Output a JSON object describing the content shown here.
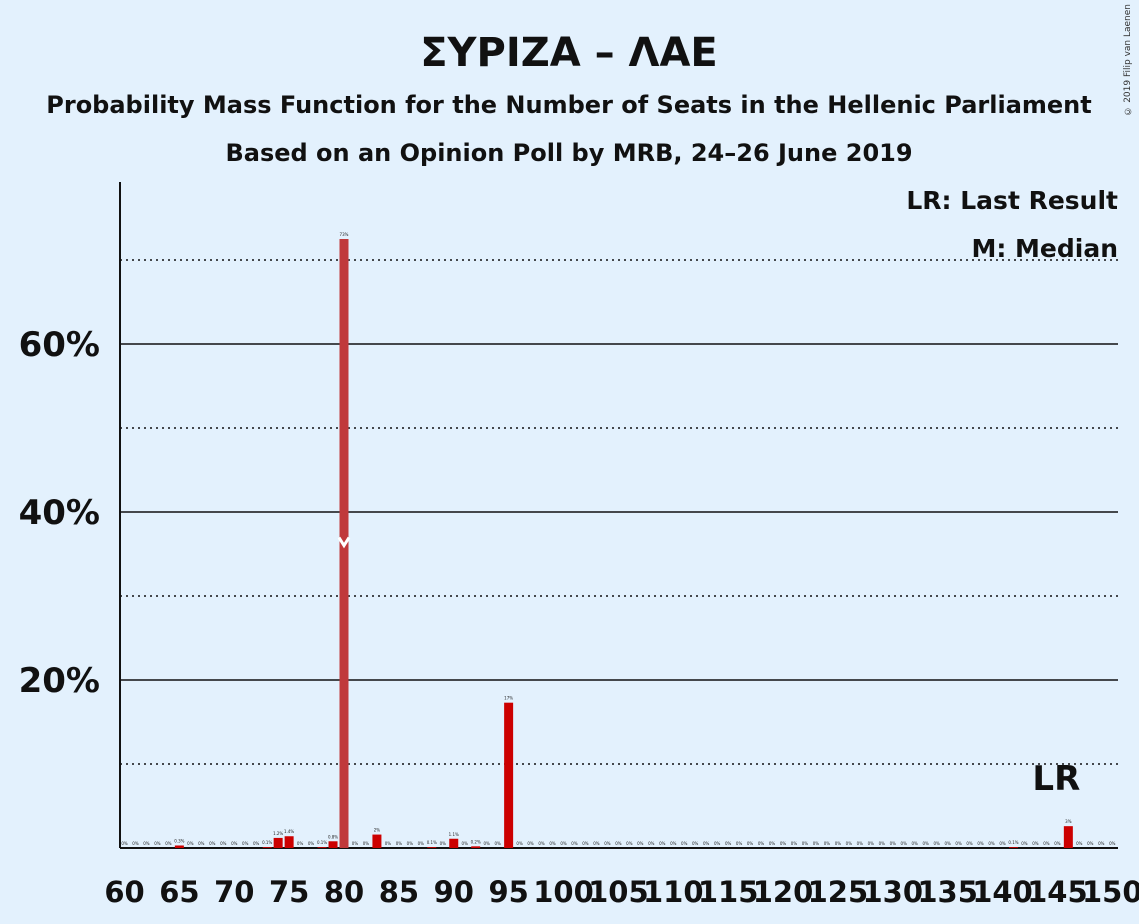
{
  "chart_data": {
    "type": "bar",
    "title": "ΣΥΡΙΖΑ – ΛΑΕ",
    "subtitle": "Probability Mass Function for the Number of Seats in the Hellenic Parliament",
    "subtitle2": "Based on an Opinion Poll by MRB, 24–26 June 2019",
    "xlabel": "",
    "ylabel": "",
    "xlim": [
      60,
      150
    ],
    "ylim": [
      0,
      78
    ],
    "x_ticks": [
      60,
      65,
      70,
      75,
      80,
      85,
      90,
      95,
      100,
      105,
      110,
      115,
      120,
      125,
      130,
      135,
      140,
      145,
      150
    ],
    "y_ticks_labeled": [
      {
        "value": 20,
        "label": "20%"
      },
      {
        "value": 40,
        "label": "40%"
      },
      {
        "value": 60,
        "label": "60%"
      }
    ],
    "y_ticks_dotted": [
      10,
      30,
      50,
      70
    ],
    "legend": {
      "position": "top-right",
      "items": [
        "LR: Last Result",
        "M: Median"
      ]
    },
    "last_result": {
      "seat": 146,
      "label": "LR"
    },
    "median": {
      "seat": 80
    },
    "bar_color": "#cc0000",
    "median_bar_color": "#c0393b",
    "bars": [
      {
        "x": 60,
        "value": 0,
        "label": "0%"
      },
      {
        "x": 61,
        "value": 0,
        "label": "0%"
      },
      {
        "x": 62,
        "value": 0,
        "label": "0%"
      },
      {
        "x": 63,
        "value": 0,
        "label": "0%"
      },
      {
        "x": 64,
        "value": 0,
        "label": "0%"
      },
      {
        "x": 65,
        "value": 0.3,
        "label": "0.3%"
      },
      {
        "x": 66,
        "value": 0,
        "label": "0%"
      },
      {
        "x": 67,
        "value": 0,
        "label": "0%"
      },
      {
        "x": 68,
        "value": 0,
        "label": "0%"
      },
      {
        "x": 69,
        "value": 0,
        "label": "0%"
      },
      {
        "x": 70,
        "value": 0,
        "label": "0%"
      },
      {
        "x": 71,
        "value": 0,
        "label": "0%"
      },
      {
        "x": 72,
        "value": 0,
        "label": "0%"
      },
      {
        "x": 73,
        "value": 0.1,
        "label": "0.1%"
      },
      {
        "x": 74,
        "value": 1.2,
        "label": "1.2%"
      },
      {
        "x": 75,
        "value": 1.4,
        "label": "1.4%"
      },
      {
        "x": 76,
        "value": 0,
        "label": "0%"
      },
      {
        "x": 77,
        "value": 0,
        "label": "0%"
      },
      {
        "x": 78,
        "value": 0.1,
        "label": "0.1%"
      },
      {
        "x": 79,
        "value": 0.8,
        "label": "0.8%"
      },
      {
        "x": 80,
        "value": 72.5,
        "label": "73%"
      },
      {
        "x": 81,
        "value": 0,
        "label": "0%"
      },
      {
        "x": 82,
        "value": 0,
        "label": "0%"
      },
      {
        "x": 83,
        "value": 1.6,
        "label": "2%"
      },
      {
        "x": 84,
        "value": 0,
        "label": "0%"
      },
      {
        "x": 85,
        "value": 0,
        "label": "0%"
      },
      {
        "x": 86,
        "value": 0,
        "label": "0%"
      },
      {
        "x": 87,
        "value": 0,
        "label": "0%"
      },
      {
        "x": 88,
        "value": 0.1,
        "label": "0.1%"
      },
      {
        "x": 89,
        "value": 0,
        "label": "0%"
      },
      {
        "x": 90,
        "value": 1.1,
        "label": "1.1%"
      },
      {
        "x": 91,
        "value": 0,
        "label": "0%"
      },
      {
        "x": 92,
        "value": 0.2,
        "label": "0.2%"
      },
      {
        "x": 93,
        "value": 0,
        "label": "0%"
      },
      {
        "x": 94,
        "value": 0,
        "label": "0%"
      },
      {
        "x": 95,
        "value": 17.3,
        "label": "17%"
      },
      {
        "x": 96,
        "value": 0,
        "label": "0%"
      },
      {
        "x": 97,
        "value": 0,
        "label": "0%"
      },
      {
        "x": 98,
        "value": 0,
        "label": "0%"
      },
      {
        "x": 99,
        "value": 0,
        "label": "0%"
      },
      {
        "x": 100,
        "value": 0,
        "label": "0%"
      },
      {
        "x": 101,
        "value": 0,
        "label": "0%"
      },
      {
        "x": 102,
        "value": 0,
        "label": "0%"
      },
      {
        "x": 103,
        "value": 0,
        "label": "0%"
      },
      {
        "x": 104,
        "value": 0,
        "label": "0%"
      },
      {
        "x": 105,
        "value": 0,
        "label": "0%"
      },
      {
        "x": 106,
        "value": 0,
        "label": "0%"
      },
      {
        "x": 107,
        "value": 0,
        "label": "0%"
      },
      {
        "x": 108,
        "value": 0,
        "label": "0%"
      },
      {
        "x": 109,
        "value": 0,
        "label": "0%"
      },
      {
        "x": 110,
        "value": 0,
        "label": "0%"
      },
      {
        "x": 111,
        "value": 0,
        "label": "0%"
      },
      {
        "x": 112,
        "value": 0,
        "label": "0%"
      },
      {
        "x": 113,
        "value": 0,
        "label": "0%"
      },
      {
        "x": 114,
        "value": 0,
        "label": "0%"
      },
      {
        "x": 115,
        "value": 0,
        "label": "0%"
      },
      {
        "x": 116,
        "value": 0,
        "label": "0%"
      },
      {
        "x": 117,
        "value": 0,
        "label": "0%"
      },
      {
        "x": 118,
        "value": 0,
        "label": "0%"
      },
      {
        "x": 119,
        "value": 0,
        "label": "0%"
      },
      {
        "x": 120,
        "value": 0,
        "label": "0%"
      },
      {
        "x": 121,
        "value": 0,
        "label": "0%"
      },
      {
        "x": 122,
        "value": 0,
        "label": "0%"
      },
      {
        "x": 123,
        "value": 0,
        "label": "0%"
      },
      {
        "x": 124,
        "value": 0,
        "label": "0%"
      },
      {
        "x": 125,
        "value": 0,
        "label": "0%"
      },
      {
        "x": 126,
        "value": 0,
        "label": "0%"
      },
      {
        "x": 127,
        "value": 0,
        "label": "0%"
      },
      {
        "x": 128,
        "value": 0,
        "label": "0%"
      },
      {
        "x": 129,
        "value": 0,
        "label": "0%"
      },
      {
        "x": 130,
        "value": 0,
        "label": "0%"
      },
      {
        "x": 131,
        "value": 0,
        "label": "0%"
      },
      {
        "x": 132,
        "value": 0,
        "label": "0%"
      },
      {
        "x": 133,
        "value": 0,
        "label": "0%"
      },
      {
        "x": 134,
        "value": 0,
        "label": "0%"
      },
      {
        "x": 135,
        "value": 0,
        "label": "0%"
      },
      {
        "x": 136,
        "value": 0,
        "label": "0%"
      },
      {
        "x": 137,
        "value": 0,
        "label": "0%"
      },
      {
        "x": 138,
        "value": 0,
        "label": "0%"
      },
      {
        "x": 139,
        "value": 0,
        "label": "0%"
      },
      {
        "x": 140,
        "value": 0,
        "label": "0%"
      },
      {
        "x": 141,
        "value": 0.1,
        "label": "0.1%"
      },
      {
        "x": 142,
        "value": 0,
        "label": "0%"
      },
      {
        "x": 143,
        "value": 0,
        "label": "0%"
      },
      {
        "x": 144,
        "value": 0,
        "label": "0%"
      },
      {
        "x": 145,
        "value": 0,
        "label": "0%"
      },
      {
        "x": 146,
        "value": 2.6,
        "label": "3%"
      },
      {
        "x": 147,
        "value": 0,
        "label": "0%"
      },
      {
        "x": 148,
        "value": 0,
        "label": "0%"
      },
      {
        "x": 149,
        "value": 0,
        "label": "0%"
      },
      {
        "x": 150,
        "value": 0,
        "label": "0%"
      }
    ]
  },
  "copyright": "© 2019 Filip van Laenen"
}
